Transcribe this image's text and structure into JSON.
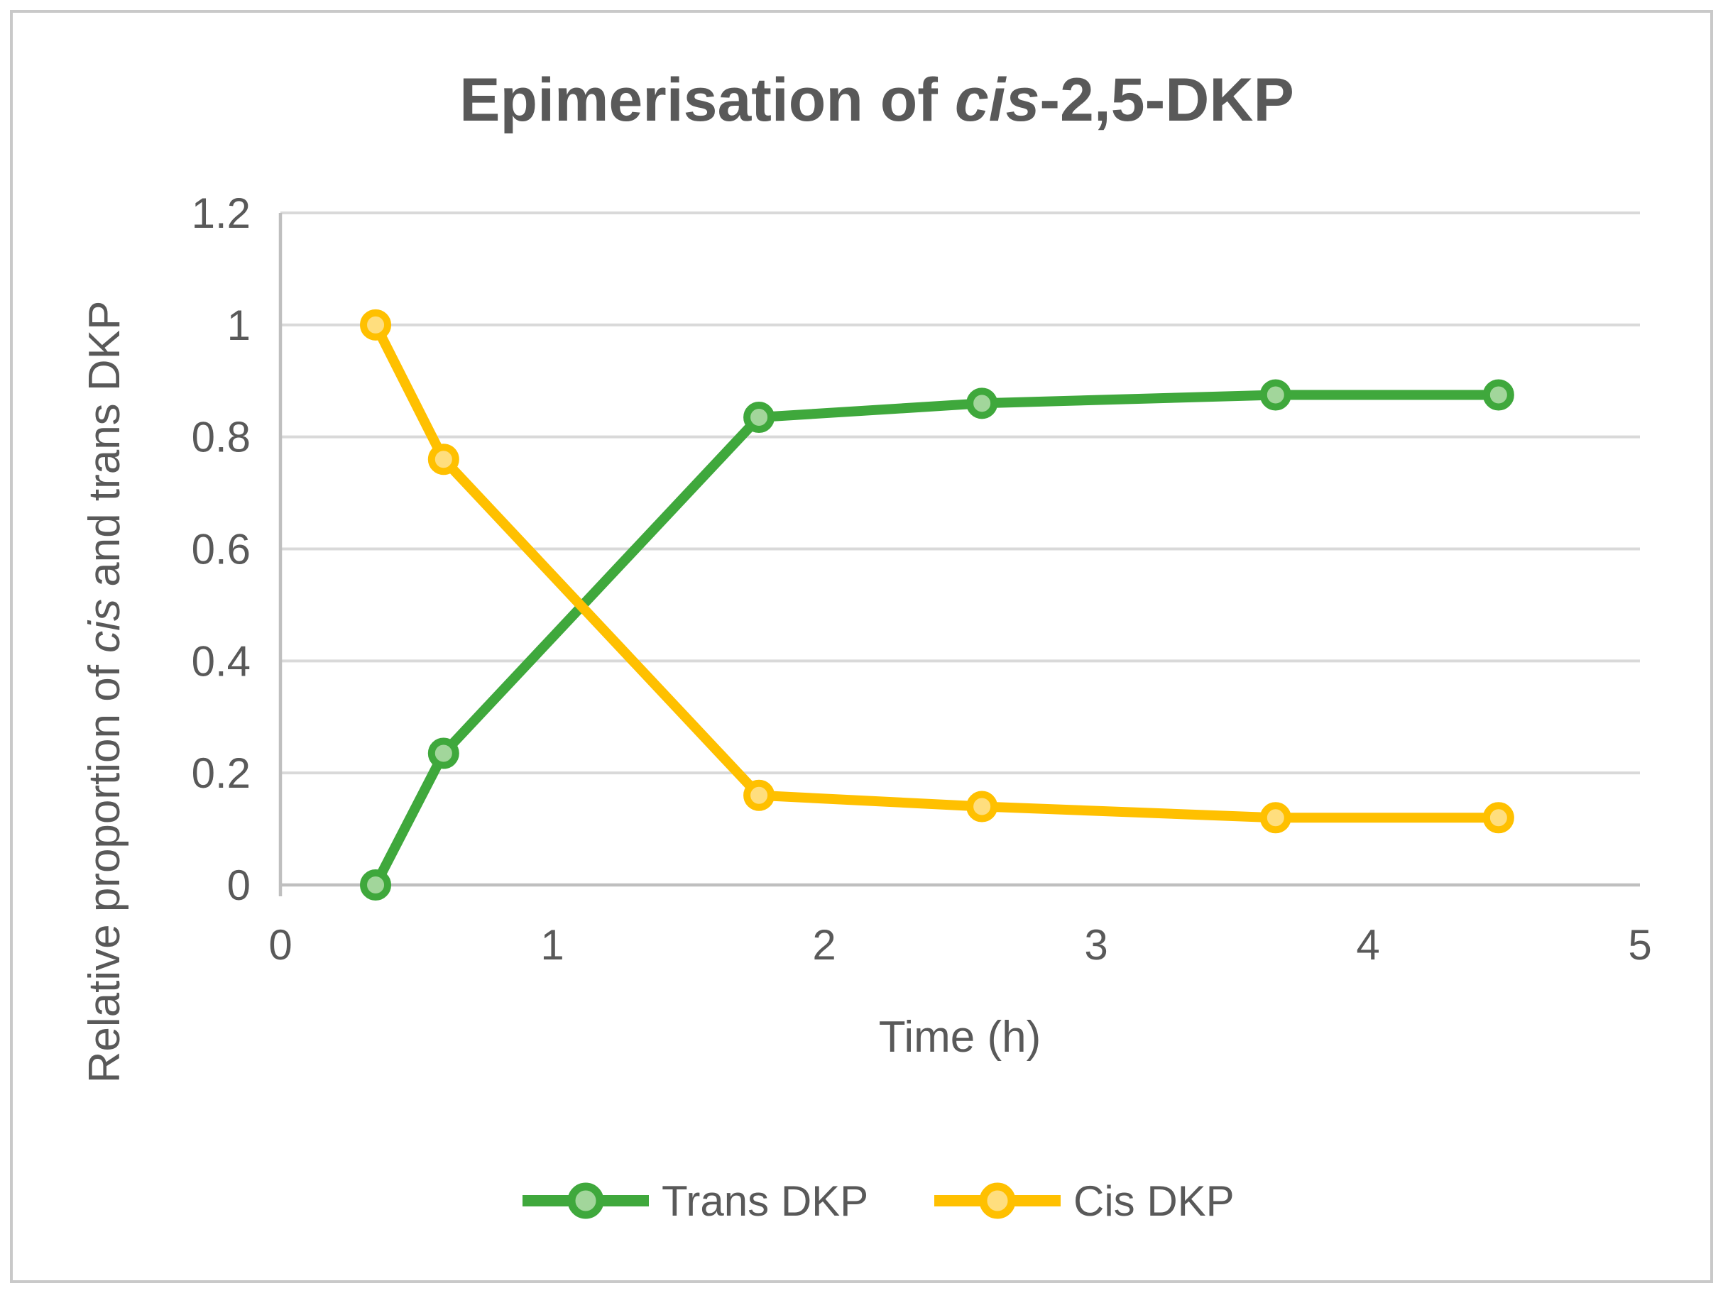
{
  "window": {
    "background": "#ffffff",
    "frame_border_color": "#c9c9c9"
  },
  "colors": {
    "text": "#595959",
    "title_text": "#595959",
    "gridline": "#d9d9d9",
    "axis_line": "#bfbfbf",
    "trans_green": "#3fa83c",
    "trans_green_marker_fill": "#a2d69b",
    "cis_gold": "#ffc000",
    "cis_gold_marker_fill": "#ffde7e"
  },
  "chart_data": {
    "type": "line",
    "title_text": "Epimerisation of cis-2,5-DKP",
    "title_parts": [
      {
        "text": "Epimerisation of ",
        "italic": false
      },
      {
        "text": "cis",
        "italic": true
      },
      {
        "text": "-2,5-DKP",
        "italic": false
      }
    ],
    "xlabel": "Time (h)",
    "ylabel_text": "Relative proportion of cis and trans DKP",
    "ylabel_parts": [
      {
        "text": "Relative proportion of ",
        "italic": false
      },
      {
        "text": "cis",
        "italic": true
      },
      {
        "text": " and trans DKP",
        "italic": false
      }
    ],
    "xlim": [
      0,
      5
    ],
    "ylim": [
      0,
      1.2
    ],
    "x_tick_values": [
      0,
      1,
      2,
      3,
      4,
      5
    ],
    "x_tick_labels": [
      "0",
      "1",
      "2",
      "3",
      "4",
      "5"
    ],
    "y_tick_values": [
      0,
      0.2,
      0.4,
      0.6,
      0.8,
      1,
      1.2
    ],
    "y_tick_labels": [
      "0",
      "0.2",
      "0.4",
      "0.6",
      "0.8",
      "1",
      "1.2"
    ],
    "grid": "horizontal",
    "legend_position": "bottom",
    "x": [
      0.35,
      0.6,
      1.76,
      2.58,
      3.66,
      4.48
    ],
    "series": [
      {
        "name": "Trans DKP",
        "line_color": "#3fa83c",
        "marker_fill": "#a2d69b",
        "x": [
          0.35,
          0.6,
          1.76,
          2.58,
          3.66,
          4.48
        ],
        "y": [
          0.0,
          0.235,
          0.835,
          0.86,
          0.875,
          0.875
        ]
      },
      {
        "name": "Cis DKP",
        "line_color": "#ffc000",
        "marker_fill": "#ffde7e",
        "x": [
          0.35,
          0.6,
          1.76,
          2.58,
          3.66,
          4.48
        ],
        "y": [
          1.0,
          0.76,
          0.16,
          0.14,
          0.12,
          0.12
        ]
      }
    ]
  }
}
